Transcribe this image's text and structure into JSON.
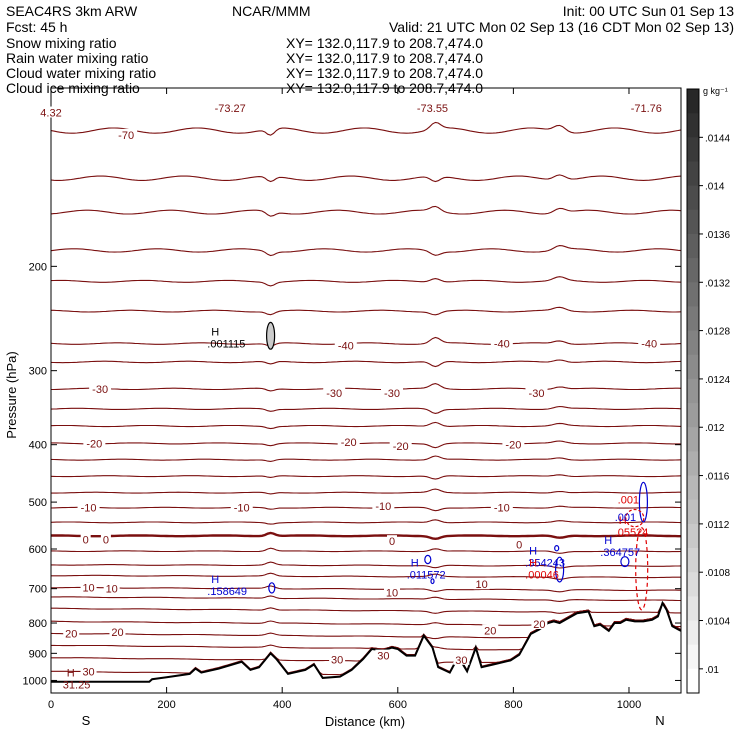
{
  "header": {
    "model": "SEAC4RS  3km ARW",
    "org": "NCAR/MMM",
    "init": "Init: 00 UTC Sun 01 Sep 13",
    "fcst": "Fcst:    45 h",
    "valid": "Valid: 21 UTC Mon 02 Sep 13 (16 CDT Mon 02 Sep 13)",
    "fields": [
      {
        "label": "Snow mixing ratio",
        "color": "#000000"
      },
      {
        "label": "Rain water mixing ratio",
        "color": "#e00000"
      },
      {
        "label": "Cloud water mixing ratio",
        "color": "#0000d0"
      },
      {
        "label": "Cloud ice mixing ratio",
        "color": "#000000"
      }
    ],
    "xy": "XY=  132.0,117.9  to  208.7,474.0"
  },
  "chart_data": {
    "type": "cross-section",
    "xlabel": "Distance (km)",
    "ylabel": "Pressure (hPa)",
    "xlim": [
      0,
      1090
    ],
    "ylim": [
      1050,
      100
    ],
    "x_ticks": [
      0,
      200,
      400,
      600,
      800,
      1000
    ],
    "y_ticks": [
      200,
      300,
      400,
      500,
      600,
      700,
      800,
      900,
      1000
    ],
    "endpoints": {
      "left": "S",
      "right": "N"
    },
    "colorbar": {
      "unit": "g kg⁻¹",
      "ticks": [
        ".0144",
        ".014",
        ".0136",
        ".0132",
        ".0128",
        ".0124",
        ".012",
        ".0116",
        ".0112",
        ".0108",
        ".0104",
        ".01"
      ]
    },
    "isotherm_color": "#7a0f0f",
    "isotherm_freezing_level_hpa": 570,
    "isotherm_labels": [
      {
        "text": "4.32",
        "x": 0,
        "p": 110
      },
      {
        "text": "-70",
        "x": 130,
        "p": 120
      },
      {
        "text": "-73.27",
        "x": 310,
        "p": 108
      },
      {
        "text": "-73.55",
        "x": 660,
        "p": 108
      },
      {
        "text": "-71.76",
        "x": 1030,
        "p": 108
      },
      {
        "text": "-40",
        "x": 510,
        "p": 272
      },
      {
        "text": "-40",
        "x": 780,
        "p": 270
      },
      {
        "text": "-40",
        "x": 1035,
        "p": 270
      },
      {
        "text": "-30",
        "x": 85,
        "p": 322
      },
      {
        "text": "-30",
        "x": 490,
        "p": 327
      },
      {
        "text": "-30",
        "x": 590,
        "p": 327
      },
      {
        "text": "-30",
        "x": 840,
        "p": 327
      },
      {
        "text": "-20",
        "x": 75,
        "p": 398
      },
      {
        "text": "-20",
        "x": 515,
        "p": 396
      },
      {
        "text": "-20",
        "x": 605,
        "p": 402
      },
      {
        "text": "-20",
        "x": 800,
        "p": 400
      },
      {
        "text": "-10",
        "x": 65,
        "p": 511
      },
      {
        "text": "-10",
        "x": 330,
        "p": 511
      },
      {
        "text": "-10",
        "x": 575,
        "p": 508
      },
      {
        "text": "-10",
        "x": 780,
        "p": 511
      },
      {
        "text": "0",
        "x": 60,
        "p": 578
      },
      {
        "text": "0",
        "x": 95,
        "p": 578
      },
      {
        "text": "0",
        "x": 590,
        "p": 582
      },
      {
        "text": "0",
        "x": 810,
        "p": 590
      },
      {
        "text": "10",
        "x": 65,
        "p": 697
      },
      {
        "text": "10",
        "x": 105,
        "p": 699
      },
      {
        "text": "10",
        "x": 590,
        "p": 710
      },
      {
        "text": "10",
        "x": 745,
        "p": 688
      },
      {
        "text": "20",
        "x": 35,
        "p": 833
      },
      {
        "text": "20",
        "x": 115,
        "p": 828
      },
      {
        "text": "20",
        "x": 760,
        "p": 823
      },
      {
        "text": "20",
        "x": 845,
        "p": 803
      },
      {
        "text": "30",
        "x": 65,
        "p": 965
      },
      {
        "text": "30",
        "x": 495,
        "p": 922
      },
      {
        "text": "30",
        "x": 575,
        "p": 908
      },
      {
        "text": "30",
        "x": 710,
        "p": 923
      }
    ],
    "extrema": [
      {
        "h": "H",
        "value": ".001115",
        "x": 305,
        "p": 270,
        "color": "#000000"
      },
      {
        "h": "H",
        "value": ".011572",
        "x": 650,
        "p": 662,
        "color": "#0000d0"
      },
      {
        "h": "H",
        "value": ".158649",
        "x": 305,
        "p": 706,
        "color": "#0000d0"
      },
      {
        "h": "H",
        "value": ".354243",
        "x": 855,
        "p": 632,
        "color": "#0000d0"
      },
      {
        "h": "H",
        "value": ".00046",
        "x": 855,
        "p": 662,
        "color": "#e00000"
      },
      {
        "h": "H",
        "value": ".364757",
        "x": 985,
        "p": 607,
        "color": "#0000d0"
      },
      {
        "h": "H",
        "value": ".05524",
        "x": 1010,
        "p": 562,
        "color": "#e00000"
      },
      {
        "h": "",
        "value": ".001",
        "x": 1010,
        "p": 530,
        "color": "#0000d0"
      },
      {
        "h": "",
        "value": ".001",
        "x": 1015,
        "p": 495,
        "color": "#e00000"
      },
      {
        "h": "H",
        "value": "31.25",
        "x": 55,
        "p": 1015,
        "color": "#7a0f0f"
      }
    ],
    "terrain_surface_hpa": [
      [
        0,
        1005
      ],
      [
        170,
        1005
      ],
      [
        175,
        995
      ],
      [
        200,
        988
      ],
      [
        240,
        975
      ],
      [
        250,
        955
      ],
      [
        260,
        970
      ],
      [
        290,
        955
      ],
      [
        330,
        930
      ],
      [
        345,
        960
      ],
      [
        360,
        950
      ],
      [
        380,
        900
      ],
      [
        390,
        920
      ],
      [
        410,
        975
      ],
      [
        440,
        960
      ],
      [
        455,
        940
      ],
      [
        470,
        990
      ],
      [
        500,
        985
      ],
      [
        520,
        960
      ],
      [
        540,
        920
      ],
      [
        555,
        885
      ],
      [
        575,
        890
      ],
      [
        590,
        880
      ],
      [
        600,
        885
      ],
      [
        615,
        908
      ],
      [
        630,
        908
      ],
      [
        645,
        840
      ],
      [
        660,
        880
      ],
      [
        670,
        950
      ],
      [
        690,
        970
      ],
      [
        700,
        930
      ],
      [
        710,
        930
      ],
      [
        720,
        965
      ],
      [
        735,
        880
      ],
      [
        745,
        950
      ],
      [
        765,
        940
      ],
      [
        795,
        925
      ],
      [
        810,
        905
      ],
      [
        830,
        835
      ],
      [
        845,
        820
      ],
      [
        860,
        800
      ],
      [
        870,
        795
      ],
      [
        880,
        800
      ],
      [
        890,
        790
      ],
      [
        900,
        780
      ],
      [
        910,
        770
      ],
      [
        930,
        765
      ],
      [
        940,
        810
      ],
      [
        950,
        805
      ],
      [
        965,
        825
      ],
      [
        975,
        800
      ],
      [
        985,
        800
      ],
      [
        995,
        790
      ],
      [
        1010,
        795
      ],
      [
        1025,
        795
      ],
      [
        1040,
        790
      ],
      [
        1050,
        780
      ],
      [
        1058,
        740
      ],
      [
        1065,
        760
      ],
      [
        1075,
        810
      ],
      [
        1085,
        820
      ],
      [
        1090,
        825
      ]
    ]
  }
}
